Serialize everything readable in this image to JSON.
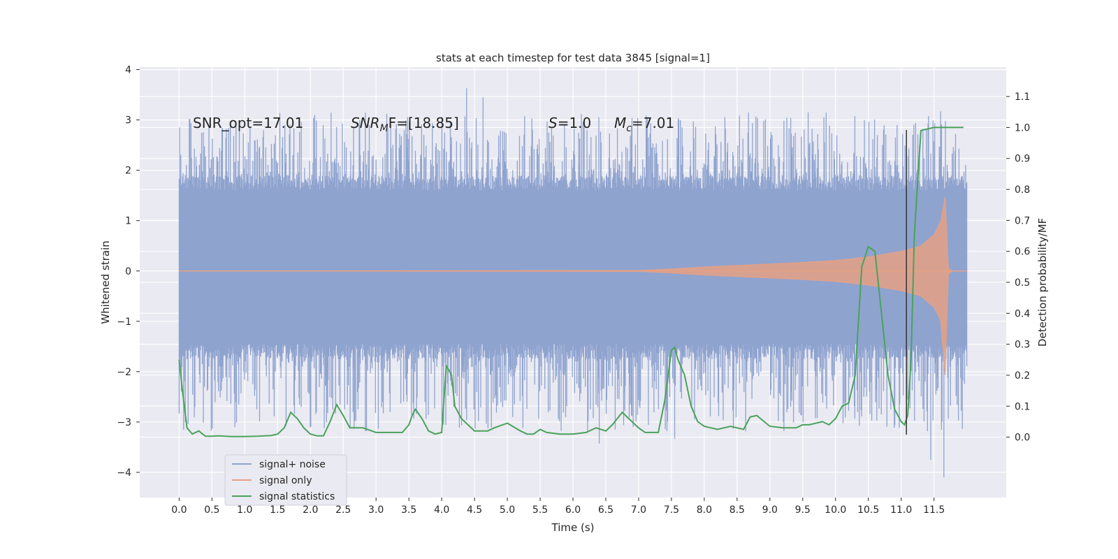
{
  "chart_data": {
    "type": "line",
    "title": "stats at each timestep for test data 3845 [signal=1]",
    "xlabel": "Time (s)",
    "ylabel_left": "Whitened strain",
    "ylabel_right": "Detection probability/MF",
    "xlim": [
      -0.6,
      12.6
    ],
    "ylim_left": [
      -4.5,
      4.05
    ],
    "ylim_right": [
      -0.195,
      1.195
    ],
    "x_ticks": [
      0.0,
      0.5,
      1.0,
      1.5,
      2.0,
      2.5,
      3.0,
      3.5,
      4.0,
      4.5,
      5.0,
      5.5,
      6.0,
      6.5,
      7.0,
      7.5,
      8.0,
      8.5,
      9.0,
      9.5,
      10.0,
      10.5,
      11.0,
      11.5
    ],
    "x_tick_labels": [
      "0.0",
      "0.5",
      "1.0",
      "1.5",
      "2.0",
      "2.5",
      "3.0",
      "3.5",
      "4.0",
      "4.5",
      "5.0",
      "5.5",
      "6.0",
      "6.5",
      "7.0",
      "7.5",
      "8.0",
      "8.5",
      "9.0",
      "9.5",
      "10.0",
      "10.5",
      "11.0",
      "11.5"
    ],
    "y_left_ticks": [
      4,
      3,
      2,
      1,
      0,
      -1,
      -2,
      -3,
      -4
    ],
    "y_left_tick_labels": [
      "4",
      "3",
      "2",
      "1",
      "0",
      "−1",
      "−2",
      "−3",
      "−4"
    ],
    "y_right_ticks": [
      1.1,
      1.0,
      0.9,
      0.8,
      0.7,
      0.6,
      0.5,
      0.4,
      0.3,
      0.2,
      0.1,
      0.0
    ],
    "y_right_tick_labels": [
      "1.1",
      "1.0",
      "0.9",
      "0.8",
      "0.7",
      "0.6",
      "0.5",
      "0.4",
      "0.3",
      "0.2",
      "0.1",
      "0.0"
    ],
    "grid": true,
    "legend_placement": "lower-left",
    "colors": {
      "background": "#eaeaf2",
      "grid": "#ffffff",
      "noise": "#8fa3cf",
      "signal": "#e5a184",
      "stats": "#4aa25a",
      "marker": "#333333"
    },
    "annotations": [
      {
        "label": "SNR_opt=17.01"
      },
      {
        "label": "SNR",
        "sub": "M",
        "suffix": "F=[18.85]"
      },
      {
        "label": "S",
        "suffix": "=1.0"
      },
      {
        "label": "M",
        "sub": "c",
        "suffix": "=7.01"
      }
    ],
    "noise_band": {
      "x_range": [
        0.0,
        12.0
      ],
      "dense_band": [
        -1.45,
        1.6
      ],
      "peak_range_top": [
        1.8,
        3.65
      ],
      "peak_range_bottom": [
        -3.6,
        -1.7
      ],
      "notable_peaks": [
        {
          "x": 4.38,
          "y": 3.63
        },
        {
          "x": 4.63,
          "y": 3.45
        },
        {
          "x": 11.6,
          "y": 3.17
        },
        {
          "x": 6.4,
          "y": -3.43
        },
        {
          "x": 7.55,
          "y": -3.33
        },
        {
          "x": 11.65,
          "y": -4.1
        },
        {
          "x": 11.45,
          "y": -3.75
        }
      ]
    },
    "signal_envelope": [
      {
        "x": 0.0,
        "y": 0.0
      },
      {
        "x": 7.0,
        "y": 0.01
      },
      {
        "x": 7.5,
        "y": 0.04
      },
      {
        "x": 8.0,
        "y": 0.08
      },
      {
        "x": 8.5,
        "y": 0.11
      },
      {
        "x": 9.0,
        "y": 0.14
      },
      {
        "x": 9.5,
        "y": 0.17
      },
      {
        "x": 10.0,
        "y": 0.21
      },
      {
        "x": 10.5,
        "y": 0.28
      },
      {
        "x": 11.0,
        "y": 0.39
      },
      {
        "x": 11.3,
        "y": 0.5
      },
      {
        "x": 11.5,
        "y": 0.72
      },
      {
        "x": 11.6,
        "y": 0.98
      },
      {
        "x": 11.67,
        "y": 1.48
      },
      {
        "x": 11.72,
        "y": 0.05
      },
      {
        "x": 11.78,
        "y": 0.0
      },
      {
        "x": 12.0,
        "y": 0.0
      }
    ],
    "series": [
      {
        "name": "signal+ noise",
        "color": "#8fa3cf"
      },
      {
        "name": "signal only",
        "color": "#e5a184"
      },
      {
        "name": "signal statistics",
        "color": "#4aa25a",
        "x": [
          0.0,
          0.05,
          0.12,
          0.2,
          0.3,
          0.4,
          0.5,
          0.6,
          0.8,
          1.0,
          1.2,
          1.4,
          1.5,
          1.6,
          1.7,
          1.8,
          1.9,
          2.0,
          2.1,
          2.2,
          2.3,
          2.4,
          2.5,
          2.6,
          2.7,
          2.8,
          3.0,
          3.2,
          3.4,
          3.5,
          3.55,
          3.6,
          3.7,
          3.8,
          3.9,
          4.0,
          4.07,
          4.1,
          4.15,
          4.2,
          4.3,
          4.5,
          4.7,
          4.8,
          5.0,
          5.2,
          5.3,
          5.4,
          5.5,
          5.6,
          5.8,
          6.0,
          6.2,
          6.35,
          6.5,
          6.6,
          6.75,
          6.85,
          7.0,
          7.1,
          7.3,
          7.4,
          7.5,
          7.55,
          7.6,
          7.7,
          7.8,
          7.9,
          8.0,
          8.2,
          8.4,
          8.6,
          8.7,
          8.8,
          9.0,
          9.2,
          9.4,
          9.5,
          9.6,
          9.8,
          9.9,
          10.0,
          10.1,
          10.2,
          10.3,
          10.4,
          10.5,
          10.6,
          10.7,
          10.8,
          10.9,
          11.0,
          11.05,
          11.1,
          11.15,
          11.2,
          11.3,
          11.5,
          11.8,
          11.95
        ],
        "values": [
          0.25,
          0.15,
          0.03,
          0.01,
          0.02,
          0.003,
          0.003,
          0.004,
          0.002,
          0.002,
          0.003,
          0.005,
          0.01,
          0.03,
          0.08,
          0.06,
          0.03,
          0.01,
          0.004,
          0.004,
          0.05,
          0.105,
          0.07,
          0.03,
          0.03,
          0.03,
          0.015,
          0.015,
          0.015,
          0.04,
          0.07,
          0.09,
          0.06,
          0.02,
          0.01,
          0.015,
          0.23,
          0.22,
          0.2,
          0.1,
          0.06,
          0.02,
          0.02,
          0.03,
          0.045,
          0.02,
          0.01,
          0.01,
          0.025,
          0.015,
          0.01,
          0.01,
          0.015,
          0.03,
          0.02,
          0.04,
          0.08,
          0.06,
          0.03,
          0.015,
          0.015,
          0.12,
          0.28,
          0.29,
          0.25,
          0.2,
          0.1,
          0.05,
          0.035,
          0.025,
          0.035,
          0.025,
          0.065,
          0.07,
          0.035,
          0.03,
          0.03,
          0.04,
          0.04,
          0.05,
          0.04,
          0.06,
          0.1,
          0.11,
          0.2,
          0.55,
          0.615,
          0.6,
          0.4,
          0.2,
          0.09,
          0.05,
          0.04,
          0.07,
          0.25,
          0.65,
          0.99,
          1.0,
          1.0,
          1.0
        ]
      }
    ],
    "marker_line": {
      "x": 11.08,
      "y_top": 2.8,
      "y_bottom": -3.25
    }
  }
}
